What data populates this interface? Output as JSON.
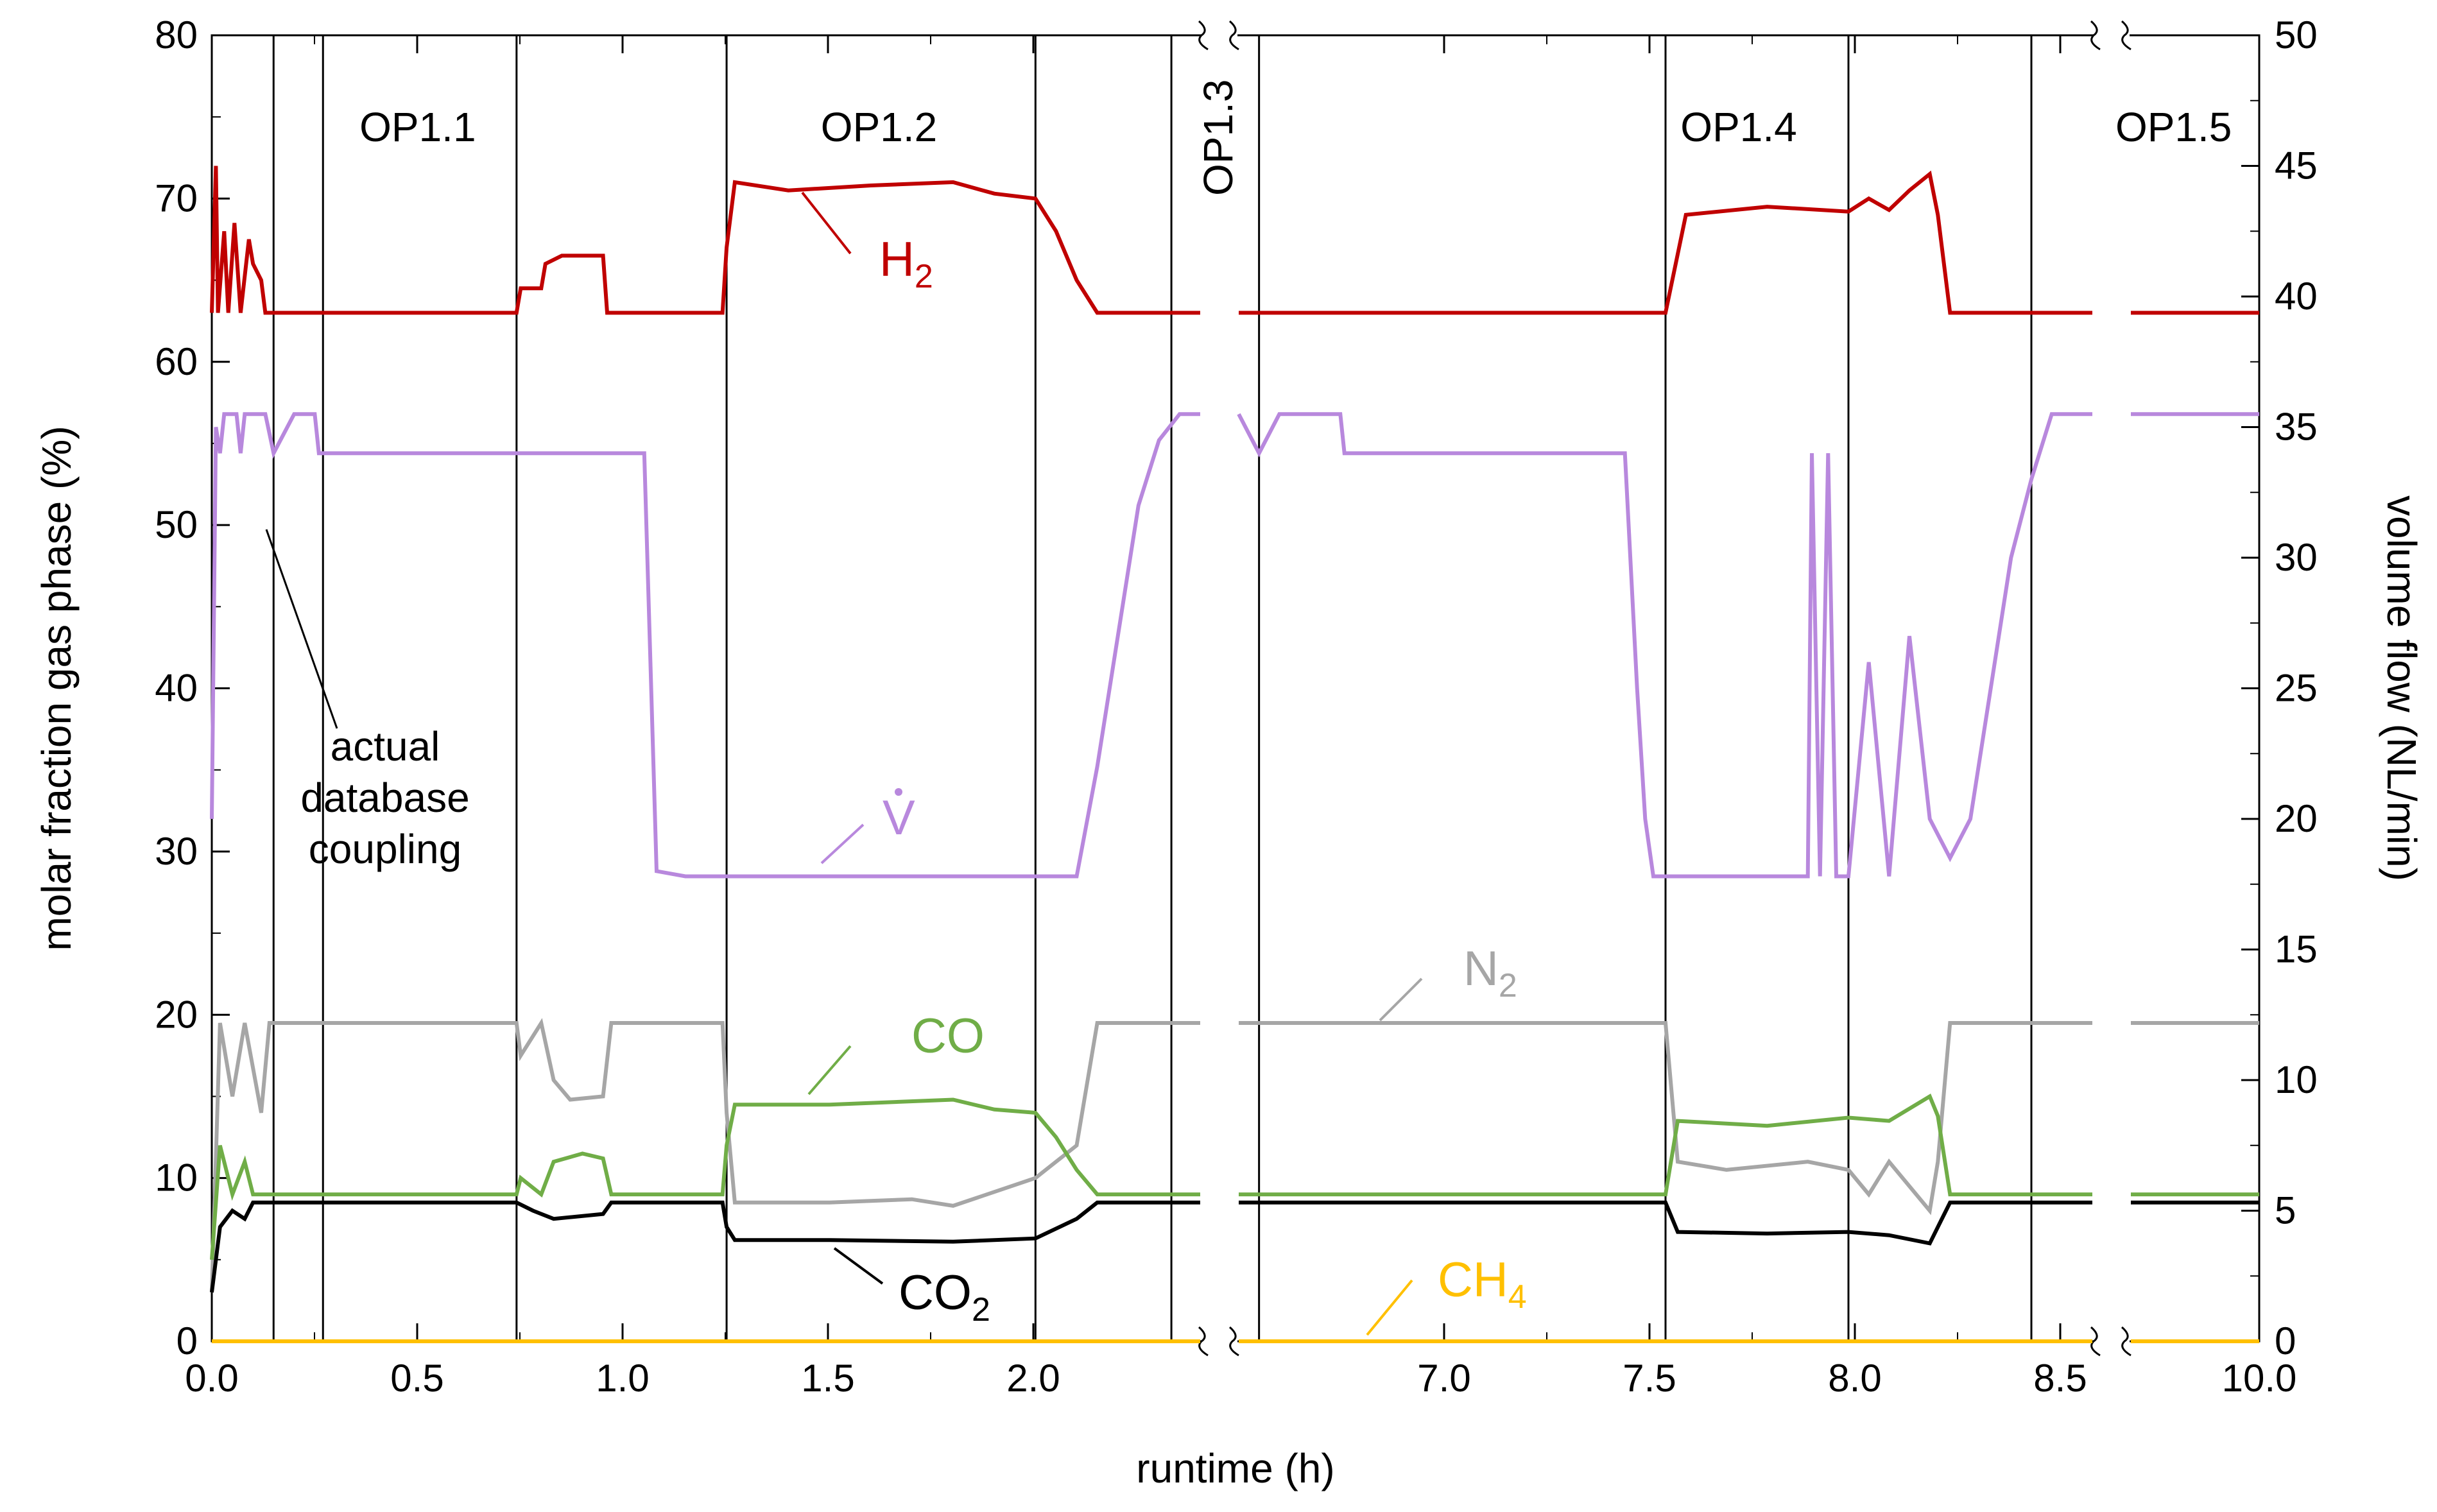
{
  "chart_data": {
    "type": "line",
    "xlabel": "runtime (h)",
    "ylabel": "molar fraction gas phase (%)",
    "y2label": "volume flow (NL/min)",
    "ylim": [
      0,
      80
    ],
    "y2lim": [
      0,
      50
    ],
    "x_tick_labels": [
      "0.0",
      "0.5",
      "1.0",
      "1.5",
      "2.0",
      "7.0",
      "7.5",
      "8.0",
      "8.5",
      "10.0"
    ],
    "y_ticks": [
      "0",
      "10",
      "20",
      "30",
      "40",
      "50",
      "60",
      "70",
      "80"
    ],
    "y2_ticks": [
      "0",
      "5",
      "10",
      "15",
      "20",
      "25",
      "30",
      "35",
      "40",
      "45",
      "50"
    ],
    "segments": [
      {
        "x_start": 0.0,
        "x_end": 2.4
      },
      {
        "x_start": 6.5,
        "x_end": 8.6
      },
      {
        "x_start": 9.7,
        "x_end": 10.0
      }
    ],
    "op_lines_h": [
      0.15,
      0.27,
      0.74,
      1.25,
      2.0,
      2.33,
      6.55,
      7.55,
      8.0,
      8.45
    ],
    "op_labels": [
      {
        "text": "OP1.1",
        "x": 0.5
      },
      {
        "text": "OP1.2",
        "x": 1.62
      },
      {
        "text": "OP1.3",
        "x": 6.45,
        "vertical": true
      },
      {
        "text": "OP1.4",
        "x": 7.73
      },
      {
        "text": "OP1.5",
        "x": 9.8
      }
    ],
    "annotation": [
      "actual",
      "database",
      "coupling"
    ],
    "series": [
      {
        "name": "H2",
        "label_main": "H",
        "label_sub": "2",
        "color": "#C00000",
        "axis": "left",
        "points": [
          [
            0.0,
            63
          ],
          [
            0.01,
            72
          ],
          [
            0.015,
            63
          ],
          [
            0.03,
            68
          ],
          [
            0.04,
            63
          ],
          [
            0.055,
            68.5
          ],
          [
            0.07,
            63
          ],
          [
            0.09,
            67.5
          ],
          [
            0.1,
            66
          ],
          [
            0.12,
            65
          ],
          [
            0.13,
            63
          ],
          [
            0.74,
            63
          ],
          [
            0.75,
            64.5
          ],
          [
            0.8,
            64.5
          ],
          [
            0.81,
            66
          ],
          [
            0.85,
            66.5
          ],
          [
            0.95,
            66.5
          ],
          [
            0.96,
            63
          ],
          [
            1.24,
            63
          ],
          [
            1.25,
            67
          ],
          [
            1.27,
            71
          ],
          [
            1.4,
            70.5
          ],
          [
            1.6,
            70.8
          ],
          [
            1.8,
            71
          ],
          [
            1.9,
            70.3
          ],
          [
            2.0,
            70
          ],
          [
            2.05,
            68
          ],
          [
            2.1,
            65
          ],
          [
            2.15,
            63
          ],
          [
            2.4,
            63
          ],
          [
            6.5,
            63
          ],
          [
            7.55,
            63
          ],
          [
            7.6,
            69
          ],
          [
            7.8,
            69.5
          ],
          [
            8.0,
            69.2
          ],
          [
            8.05,
            70
          ],
          [
            8.1,
            69.3
          ],
          [
            8.15,
            70.5
          ],
          [
            8.2,
            71.5
          ],
          [
            8.22,
            69
          ],
          [
            8.25,
            63
          ],
          [
            8.6,
            63
          ],
          [
            9.7,
            63
          ],
          [
            10.0,
            63
          ]
        ]
      },
      {
        "name": "V-dot",
        "label_main": "V",
        "color": "#B888DD",
        "axis": "right",
        "points": [
          [
            0.0,
            20
          ],
          [
            0.01,
            35
          ],
          [
            0.02,
            34
          ],
          [
            0.03,
            35.5
          ],
          [
            0.06,
            35.5
          ],
          [
            0.07,
            34
          ],
          [
            0.08,
            35.5
          ],
          [
            0.13,
            35.5
          ],
          [
            0.15,
            34
          ],
          [
            0.2,
            35.5
          ],
          [
            0.25,
            35.5
          ],
          [
            0.26,
            34
          ],
          [
            1.05,
            34
          ],
          [
            1.08,
            18
          ],
          [
            1.15,
            17.8
          ],
          [
            2.1,
            17.8
          ],
          [
            2.15,
            22
          ],
          [
            2.2,
            27
          ],
          [
            2.25,
            32
          ],
          [
            2.3,
            34.5
          ],
          [
            2.35,
            35.5
          ],
          [
            2.4,
            35.5
          ],
          [
            6.5,
            35.5
          ],
          [
            6.55,
            34
          ],
          [
            6.6,
            35.5
          ],
          [
            6.75,
            35.5
          ],
          [
            6.76,
            34
          ],
          [
            7.45,
            34
          ],
          [
            7.48,
            25
          ],
          [
            7.5,
            20
          ],
          [
            7.52,
            17.8
          ],
          [
            7.9,
            17.8
          ],
          [
            7.91,
            34
          ],
          [
            7.93,
            17.8
          ],
          [
            7.95,
            34
          ],
          [
            7.97,
            17.8
          ],
          [
            8.0,
            17.8
          ],
          [
            8.05,
            26
          ],
          [
            8.1,
            17.8
          ],
          [
            8.15,
            27
          ],
          [
            8.2,
            20
          ],
          [
            8.25,
            18.5
          ],
          [
            8.3,
            20
          ],
          [
            8.35,
            25
          ],
          [
            8.4,
            30
          ],
          [
            8.45,
            33
          ],
          [
            8.5,
            35.5
          ],
          [
            8.6,
            35.5
          ],
          [
            9.7,
            35.5
          ],
          [
            10.0,
            35.5
          ]
        ]
      },
      {
        "name": "N2",
        "label_main": "N",
        "label_sub": "2",
        "color": "#A6A6A6",
        "axis": "left",
        "points": [
          [
            0.0,
            3
          ],
          [
            0.02,
            19.5
          ],
          [
            0.05,
            15
          ],
          [
            0.08,
            19.5
          ],
          [
            0.12,
            14
          ],
          [
            0.14,
            19.5
          ],
          [
            0.74,
            19.5
          ],
          [
            0.75,
            17.5
          ],
          [
            0.8,
            19.5
          ],
          [
            0.83,
            16
          ],
          [
            0.87,
            14.8
          ],
          [
            0.95,
            15
          ],
          [
            0.97,
            19.5
          ],
          [
            1.24,
            19.5
          ],
          [
            1.25,
            14
          ],
          [
            1.27,
            8.5
          ],
          [
            1.5,
            8.5
          ],
          [
            1.7,
            8.7
          ],
          [
            1.8,
            8.3
          ],
          [
            2.0,
            10
          ],
          [
            2.1,
            12
          ],
          [
            2.15,
            19.5
          ],
          [
            2.4,
            19.5
          ],
          [
            6.5,
            19.5
          ],
          [
            7.55,
            19.5
          ],
          [
            7.58,
            11
          ],
          [
            7.7,
            10.5
          ],
          [
            7.9,
            11
          ],
          [
            8.0,
            10.5
          ],
          [
            8.05,
            9
          ],
          [
            8.1,
            11
          ],
          [
            8.2,
            8
          ],
          [
            8.22,
            11
          ],
          [
            8.25,
            19.5
          ],
          [
            8.6,
            19.5
          ],
          [
            9.7,
            19.5
          ],
          [
            10.0,
            19.5
          ]
        ]
      },
      {
        "name": "CO",
        "label_main": "CO",
        "color": "#70AD47",
        "axis": "left",
        "points": [
          [
            0.0,
            5
          ],
          [
            0.02,
            12
          ],
          [
            0.05,
            9
          ],
          [
            0.08,
            11
          ],
          [
            0.1,
            9
          ],
          [
            0.74,
            9
          ],
          [
            0.75,
            10
          ],
          [
            0.8,
            9
          ],
          [
            0.83,
            11
          ],
          [
            0.9,
            11.5
          ],
          [
            0.95,
            11.2
          ],
          [
            0.97,
            9
          ],
          [
            1.24,
            9
          ],
          [
            1.25,
            12
          ],
          [
            1.27,
            14.5
          ],
          [
            1.5,
            14.5
          ],
          [
            1.8,
            14.8
          ],
          [
            1.9,
            14.2
          ],
          [
            2.0,
            14
          ],
          [
            2.05,
            12.5
          ],
          [
            2.1,
            10.5
          ],
          [
            2.15,
            9
          ],
          [
            2.4,
            9
          ],
          [
            6.5,
            9
          ],
          [
            7.55,
            9
          ],
          [
            7.58,
            13.5
          ],
          [
            7.8,
            13.2
          ],
          [
            8.0,
            13.7
          ],
          [
            8.1,
            13.5
          ],
          [
            8.2,
            15
          ],
          [
            8.22,
            13.8
          ],
          [
            8.25,
            9
          ],
          [
            8.6,
            9
          ],
          [
            9.7,
            9
          ],
          [
            10.0,
            9
          ]
        ]
      },
      {
        "name": "CO2",
        "label_main": "CO",
        "label_sub": "2",
        "color": "#000000",
        "axis": "left",
        "points": [
          [
            0.0,
            3
          ],
          [
            0.02,
            7
          ],
          [
            0.05,
            8
          ],
          [
            0.08,
            7.5
          ],
          [
            0.1,
            8.5
          ],
          [
            0.74,
            8.5
          ],
          [
            0.78,
            8
          ],
          [
            0.83,
            7.5
          ],
          [
            0.95,
            7.8
          ],
          [
            0.97,
            8.5
          ],
          [
            1.24,
            8.5
          ],
          [
            1.25,
            7
          ],
          [
            1.27,
            6.2
          ],
          [
            1.5,
            6.2
          ],
          [
            1.8,
            6.1
          ],
          [
            2.0,
            6.3
          ],
          [
            2.1,
            7.5
          ],
          [
            2.15,
            8.5
          ],
          [
            2.4,
            8.5
          ],
          [
            6.5,
            8.5
          ],
          [
            7.55,
            8.5
          ],
          [
            7.58,
            6.7
          ],
          [
            7.8,
            6.6
          ],
          [
            8.0,
            6.7
          ],
          [
            8.1,
            6.5
          ],
          [
            8.2,
            6
          ],
          [
            8.22,
            7
          ],
          [
            8.25,
            8.5
          ],
          [
            8.6,
            8.5
          ],
          [
            9.7,
            8.5
          ],
          [
            10.0,
            8.5
          ]
        ]
      },
      {
        "name": "CH4",
        "label_main": "CH",
        "label_sub": "4",
        "color": "#FFC000",
        "axis": "left",
        "points": [
          [
            0.0,
            0
          ],
          [
            2.4,
            0
          ],
          [
            6.5,
            0
          ],
          [
            8.6,
            0
          ],
          [
            9.7,
            0
          ],
          [
            10.0,
            0
          ]
        ]
      }
    ]
  }
}
